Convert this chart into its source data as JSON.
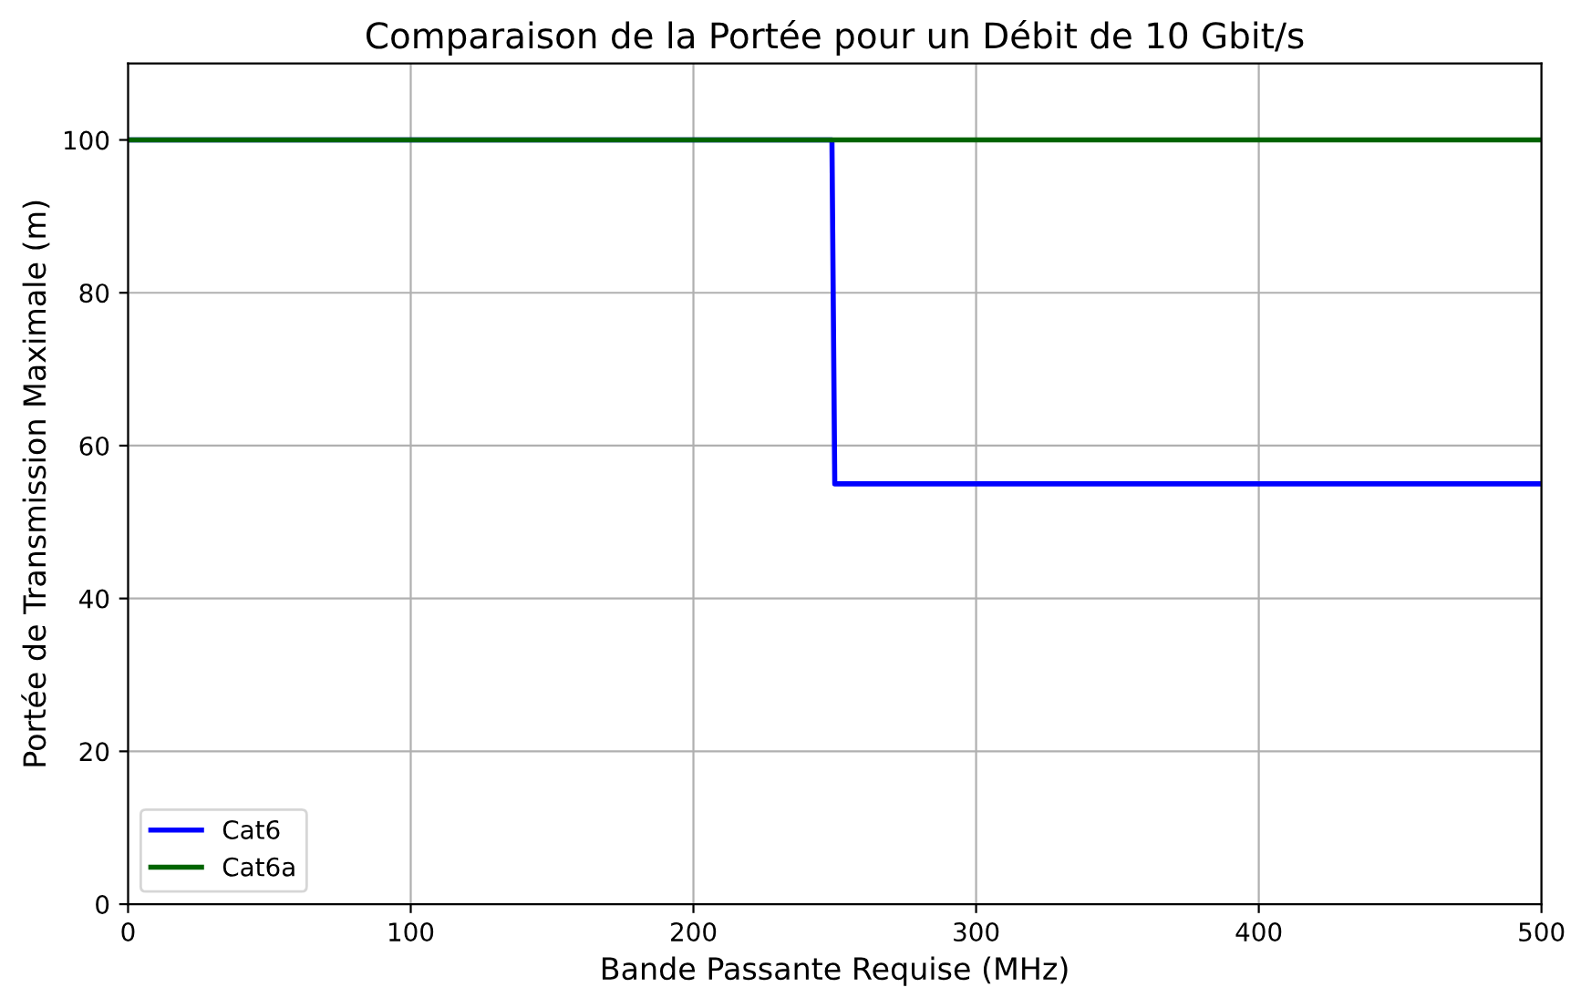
{
  "chart_data": {
    "type": "line",
    "title": "Comparaison de la Portée pour un Débit de 10 Gbit/s",
    "xlabel": "Bande Passante Requise (MHz)",
    "ylabel": "Portée de Transmission Maximale (m)",
    "series": [
      {
        "name": "Cat6",
        "color": "#0000ff",
        "x": [
          0,
          249,
          250,
          500
        ],
        "values": [
          100,
          100,
          55,
          55
        ]
      },
      {
        "name": "Cat6a",
        "color": "#006400",
        "x": [
          0,
          500
        ],
        "values": [
          100,
          100
        ]
      }
    ],
    "xlim": [
      0,
      500
    ],
    "xticks": [
      0,
      100,
      200,
      300,
      400,
      500
    ],
    "ylim": [
      0,
      110
    ],
    "yticks": [
      0,
      20,
      40,
      60,
      80,
      100
    ],
    "grid": true,
    "legend": "bottom left",
    "marker": "none",
    "line_style": "solid"
  }
}
